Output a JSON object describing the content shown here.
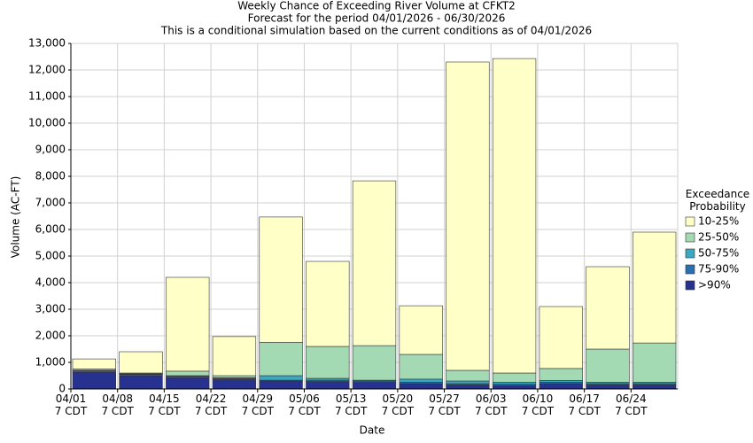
{
  "chart_data": {
    "type": "stacked_bar",
    "title": "Weekly Chance of Exceeding River Volume at CFKT2",
    "subtitle": "Forecast for the period 04/01/2026 - 06/30/2026",
    "caption": "This is a conditional simulation based on the current conditions as of 04/01/2026",
    "x_label": "Date",
    "y_label": "Volume (AC-FT)",
    "legend_title": "Exceedance\nProbability",
    "legend_position": "right",
    "categories": [
      "04/01\n7 CDT",
      "04/08\n7 CDT",
      "04/15\n7 CDT",
      "04/22\n7 CDT",
      "04/29\n7 CDT",
      "05/06\n7 CDT",
      "05/13\n7 CDT",
      "05/20\n7 CDT",
      "05/27\n7 CDT",
      "06/03\n7 CDT",
      "06/10\n7 CDT",
      "06/17\n7 CDT",
      "06/24\n7 CDT"
    ],
    "series": [
      {
        "name": ">90%",
        "color": "#27318f",
        "values": [
          630,
          500,
          430,
          350,
          300,
          280,
          250,
          200,
          150,
          130,
          200,
          150,
          150
        ]
      },
      {
        "name": "75-90%",
        "color": "#2a6fb0",
        "values": [
          50,
          50,
          50,
          50,
          30,
          50,
          50,
          50,
          50,
          50,
          50,
          50,
          50
        ]
      },
      {
        "name": "50-75%",
        "color": "#3aa8c1",
        "values": [
          20,
          20,
          20,
          20,
          170,
          70,
          30,
          120,
          100,
          70,
          70,
          50,
          50
        ]
      },
      {
        "name": "25-50%",
        "color": "#a3dab4",
        "values": [
          50,
          30,
          170,
          80,
          1250,
          1200,
          1300,
          930,
          400,
          350,
          450,
          1250,
          1480
        ]
      },
      {
        "name": "10-25%",
        "color": "#ffffc8",
        "values": [
          380,
          800,
          3530,
          1470,
          4720,
          3200,
          6200,
          1830,
          11600,
          11830,
          2330,
          3100,
          4170
        ]
      }
    ],
    "ylim": [
      0,
      13000
    ],
    "yticks": [
      0,
      {
        "value": 1000,
        "label": "1,000"
      },
      {
        "value": 2000,
        "label": "2,000"
      },
      {
        "value": 3000,
        "label": "3,000"
      },
      {
        "value": 4000,
        "label": "4,000"
      },
      {
        "value": 5000,
        "label": "5,000"
      },
      {
        "value": 6000,
        "label": "6,000"
      },
      {
        "value": 7000,
        "label": "7,000"
      },
      {
        "value": 8000,
        "label": "8,000"
      },
      {
        "value": 9000,
        "label": "9,000"
      },
      {
        "value": 10000,
        "label": "10,000"
      },
      {
        "value": 11000,
        "label": "11,000"
      },
      {
        "value": 12000,
        "label": "12,000"
      },
      {
        "value": 13000,
        "label": "13,000"
      }
    ],
    "grid": true
  }
}
